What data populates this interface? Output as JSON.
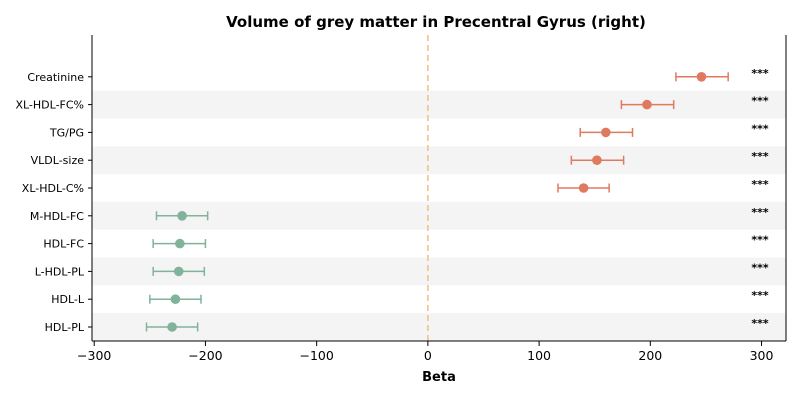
{
  "chart_data": {
    "type": "scatter",
    "title": "Volume of grey matter in Precentral Gyrus (right)",
    "xlabel": "Beta",
    "ylabel": "",
    "xlim": [
      -302,
      322
    ],
    "xticks": [
      -300,
      -200,
      -100,
      0,
      100,
      200,
      300
    ],
    "xtick_labels": [
      "−300",
      "−200",
      "−100",
      "0",
      "100",
      "200",
      "300"
    ],
    "reference_line_x": 0,
    "grid": false,
    "alternating_row_shading": true,
    "colors": {
      "positive": "#e07a5f",
      "negative": "#81b29a",
      "reference_line": "#f2c48a",
      "row_shade": "#f4f4f4",
      "axis": "#000000"
    },
    "points": [
      {
        "label": "Creatinine",
        "beta": 246,
        "ci_low": 223,
        "ci_high": 270,
        "significance": "***"
      },
      {
        "label": "XL-HDL-FC%",
        "beta": 197,
        "ci_low": 174,
        "ci_high": 221,
        "significance": "***"
      },
      {
        "label": "TG/PG",
        "beta": 160,
        "ci_low": 137,
        "ci_high": 184,
        "significance": "***"
      },
      {
        "label": "VLDL-size",
        "beta": 152,
        "ci_low": 129,
        "ci_high": 176,
        "significance": "***"
      },
      {
        "label": "XL-HDL-C%",
        "beta": 140,
        "ci_low": 117,
        "ci_high": 163,
        "significance": "***"
      },
      {
        "label": "M-HDL-FC",
        "beta": -221,
        "ci_low": -244,
        "ci_high": -198,
        "significance": "***"
      },
      {
        "label": "HDL-FC",
        "beta": -223,
        "ci_low": -247,
        "ci_high": -200,
        "significance": "***"
      },
      {
        "label": "L-HDL-PL",
        "beta": -224,
        "ci_low": -247,
        "ci_high": -201,
        "significance": "***"
      },
      {
        "label": "HDL-L",
        "beta": -227,
        "ci_low": -250,
        "ci_high": -204,
        "significance": "***"
      },
      {
        "label": "HDL-PL",
        "beta": -230,
        "ci_low": -253,
        "ci_high": -207,
        "significance": "***"
      }
    ]
  }
}
